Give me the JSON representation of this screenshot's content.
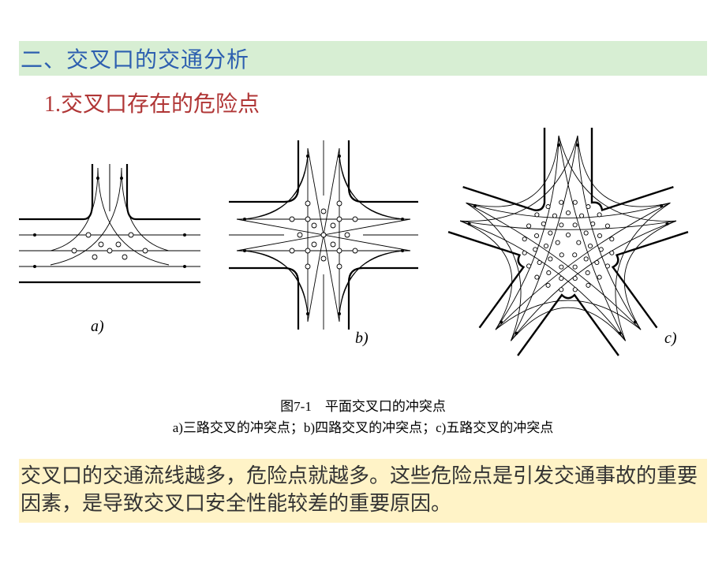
{
  "banner": {
    "text": "二、交叉口的交通分析",
    "bg_color": "#d7eed3",
    "text_color": "#2d5fb0"
  },
  "subtitle": {
    "text": "1.交叉口存在的危险点",
    "text_color": "#b03636"
  },
  "figures": {
    "label_a": "a)",
    "label_b": "b)",
    "label_c": "c)",
    "stroke": "#000000",
    "stroke_width": 2.2,
    "thin_stroke_width": 0.9
  },
  "caption": {
    "title": "图7-1　平面交叉口的冲突点",
    "line2": "a)三路交叉的冲突点；b)四路交叉的冲突点；c)五路交叉的冲突点",
    "color": "#000000"
  },
  "footer": {
    "text": "交叉口的交通流线越多，危险点就越多。这些危险点是引发交通事故的重要因素，是导致交叉口安全性能较差的重要原因。",
    "bg_color": "#fff3c7",
    "text_color": "#333333"
  }
}
